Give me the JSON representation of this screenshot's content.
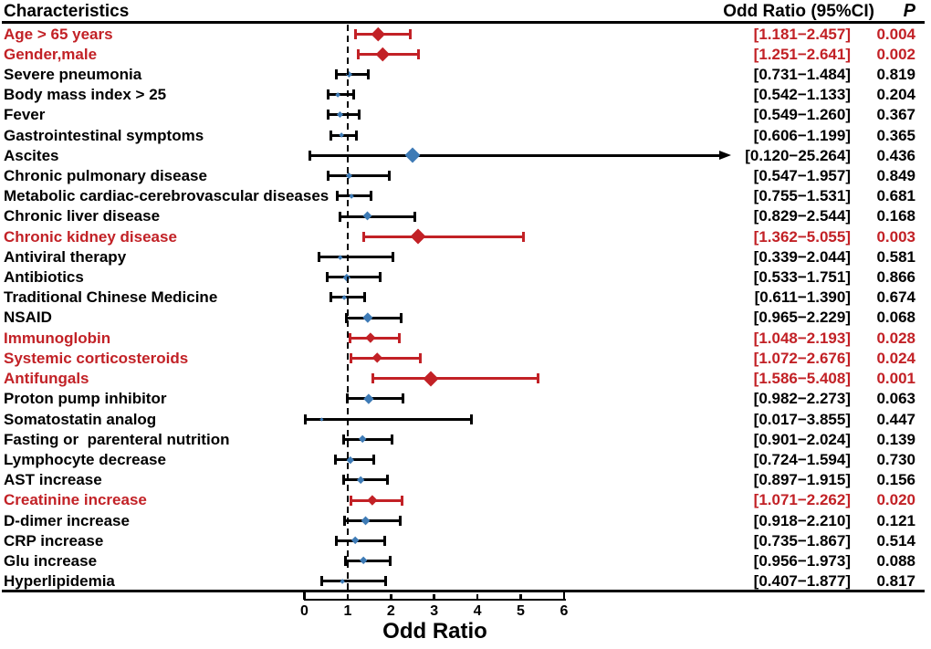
{
  "colors": {
    "significant_red": "#c22126",
    "marker_blue": "#3e7bb6",
    "line_black": "#000000"
  },
  "chart_data": {
    "type": "forest",
    "columns": {
      "characteristics": "Characteristics",
      "or_ci": "Odd Ratio (95%CI)",
      "p": "P"
    },
    "xlabel": "Odd Ratio",
    "xlim": [
      0,
      6.3
    ],
    "x_ticks": [
      0,
      1,
      2,
      3,
      4,
      5,
      6
    ],
    "reference_line": 1,
    "grid": false,
    "rows": [
      {
        "label": "Age > 65 years",
        "ci_low": 1.181,
        "ci_high": 2.457,
        "or_estimate": 1.7,
        "ci_text": "[1.181−2.457]",
        "p": "0.004",
        "significant": true,
        "marker_size": 15
      },
      {
        "label": "Gender,male",
        "ci_low": 1.251,
        "ci_high": 2.641,
        "or_estimate": 1.82,
        "ci_text": "[1.251−2.641]",
        "p": "0.002",
        "significant": true,
        "marker_size": 15
      },
      {
        "label": "Severe pneumonia",
        "ci_low": 0.731,
        "ci_high": 1.484,
        "or_estimate": 1.04,
        "ci_text": "[0.731−1.484]",
        "p": "0.819",
        "significant": false,
        "marker_size": 7
      },
      {
        "label": "Body mass index > 25",
        "ci_low": 0.542,
        "ci_high": 1.133,
        "or_estimate": 0.78,
        "ci_text": "[0.542−1.133]",
        "p": "0.204",
        "significant": false,
        "marker_size": 6
      },
      {
        "label": "Fever",
        "ci_low": 0.549,
        "ci_high": 1.26,
        "or_estimate": 0.83,
        "ci_text": "[0.549−1.260]",
        "p": "0.367",
        "significant": false,
        "marker_size": 7
      },
      {
        "label": "Gastrointestinal symptoms",
        "ci_low": 0.606,
        "ci_high": 1.199,
        "or_estimate": 0.85,
        "ci_text": "[0.606−1.199]",
        "p": "0.365",
        "significant": false,
        "marker_size": 6
      },
      {
        "label": "Ascites",
        "ci_low": 0.12,
        "ci_high": 25.264,
        "or_estimate": 2.5,
        "ci_text": "[0.120−25.264]",
        "p": "0.436",
        "significant": false,
        "marker_size": 17,
        "arrow_right": true
      },
      {
        "label": "Chronic pulmonary disease",
        "ci_low": 0.547,
        "ci_high": 1.957,
        "or_estimate": 1.03,
        "ci_text": "[0.547−1.957]",
        "p": "0.849",
        "significant": false,
        "marker_size": 7
      },
      {
        "label": "Metabolic cardiac-cerebrovascular diseases",
        "ci_low": 0.755,
        "ci_high": 1.531,
        "or_estimate": 1.08,
        "ci_text": "[0.755−1.531]",
        "p": "0.681",
        "significant": false,
        "marker_size": 6
      },
      {
        "label": "Chronic liver disease",
        "ci_low": 0.829,
        "ci_high": 2.544,
        "or_estimate": 1.45,
        "ci_text": "[0.829−2.544]",
        "p": "0.168",
        "significant": false,
        "marker_size": 10
      },
      {
        "label": "Chronic kidney disease",
        "ci_low": 1.362,
        "ci_high": 5.055,
        "or_estimate": 2.62,
        "ci_text": "[1.362−5.055]",
        "p": "0.003",
        "significant": true,
        "marker_size": 17
      },
      {
        "label": "Antiviral therapy",
        "ci_low": 0.339,
        "ci_high": 2.044,
        "or_estimate": 0.83,
        "ci_text": "[0.339−2.044]",
        "p": "0.581",
        "significant": false,
        "marker_size": 5
      },
      {
        "label": "Antibiotics",
        "ci_low": 0.533,
        "ci_high": 1.751,
        "or_estimate": 0.97,
        "ci_text": "[0.533−1.751]",
        "p": "0.866",
        "significant": false,
        "marker_size": 8
      },
      {
        "label": "Traditional Chinese Medicine",
        "ci_low": 0.611,
        "ci_high": 1.39,
        "or_estimate": 0.92,
        "ci_text": "[0.611−1.390]",
        "p": "0.674",
        "significant": false,
        "marker_size": 6
      },
      {
        "label": "NSAID",
        "ci_low": 0.965,
        "ci_high": 2.229,
        "or_estimate": 1.47,
        "ci_text": "[0.965−2.229]",
        "p": "0.068",
        "significant": false,
        "marker_size": 11
      },
      {
        "label": "Immunoglobin",
        "ci_low": 1.048,
        "ci_high": 2.193,
        "or_estimate": 1.52,
        "ci_text": "[1.048−2.193]",
        "p": "0.028",
        "significant": true,
        "marker_size": 11
      },
      {
        "label": "Systemic corticosteroids",
        "ci_low": 1.072,
        "ci_high": 2.676,
        "or_estimate": 1.69,
        "ci_text": "[1.072−2.676]",
        "p": "0.024",
        "significant": true,
        "marker_size": 12
      },
      {
        "label": "Antifungals",
        "ci_low": 1.586,
        "ci_high": 5.408,
        "or_estimate": 2.93,
        "ci_text": "[1.586−5.408]",
        "p": "0.001",
        "significant": true,
        "marker_size": 17
      },
      {
        "label": "Proton pump inhibitor",
        "ci_low": 0.982,
        "ci_high": 2.273,
        "or_estimate": 1.49,
        "ci_text": "[0.982−2.273]",
        "p": "0.063",
        "significant": false,
        "marker_size": 11
      },
      {
        "label": "Somatostatin analog",
        "ci_low": 0.017,
        "ci_high": 3.855,
        "or_estimate": 0.4,
        "ci_text": "[0.017−3.855]",
        "p": "0.447",
        "significant": false,
        "marker_size": 4
      },
      {
        "label": "Fasting or  parenteral nutrition",
        "ci_low": 0.901,
        "ci_high": 2.024,
        "or_estimate": 1.35,
        "ci_text": "[0.901−2.024]",
        "p": "0.139",
        "significant": false,
        "marker_size": 9
      },
      {
        "label": "Lymphocyte decrease",
        "ci_low": 0.724,
        "ci_high": 1.594,
        "or_estimate": 1.07,
        "ci_text": "[0.724−1.594]",
        "p": "0.730",
        "significant": false,
        "marker_size": 8
      },
      {
        "label": "AST increase",
        "ci_low": 0.897,
        "ci_high": 1.915,
        "or_estimate": 1.31,
        "ci_text": "[0.897−1.915]",
        "p": "0.156",
        "significant": false,
        "marker_size": 9
      },
      {
        "label": "Creatinine increase",
        "ci_low": 1.071,
        "ci_high": 2.262,
        "or_estimate": 1.56,
        "ci_text": "[1.071−2.262]",
        "p": "0.020",
        "significant": true,
        "marker_size": 11
      },
      {
        "label": "D-dimer increase",
        "ci_low": 0.918,
        "ci_high": 2.21,
        "or_estimate": 1.42,
        "ci_text": "[0.918−2.210]",
        "p": "0.121",
        "significant": false,
        "marker_size": 10
      },
      {
        "label": "CRP increase",
        "ci_low": 0.735,
        "ci_high": 1.867,
        "or_estimate": 1.17,
        "ci_text": "[0.735−1.867]",
        "p": "0.514",
        "significant": false,
        "marker_size": 9
      },
      {
        "label": "Glu increase",
        "ci_low": 0.956,
        "ci_high": 1.973,
        "or_estimate": 1.37,
        "ci_text": "[0.956−1.973]",
        "p": "0.088",
        "significant": false,
        "marker_size": 9
      },
      {
        "label": "Hyperlipidemia",
        "ci_low": 0.407,
        "ci_high": 1.877,
        "or_estimate": 0.87,
        "ci_text": "[0.407−1.877]",
        "p": "0.817",
        "significant": false,
        "marker_size": 6
      }
    ]
  }
}
